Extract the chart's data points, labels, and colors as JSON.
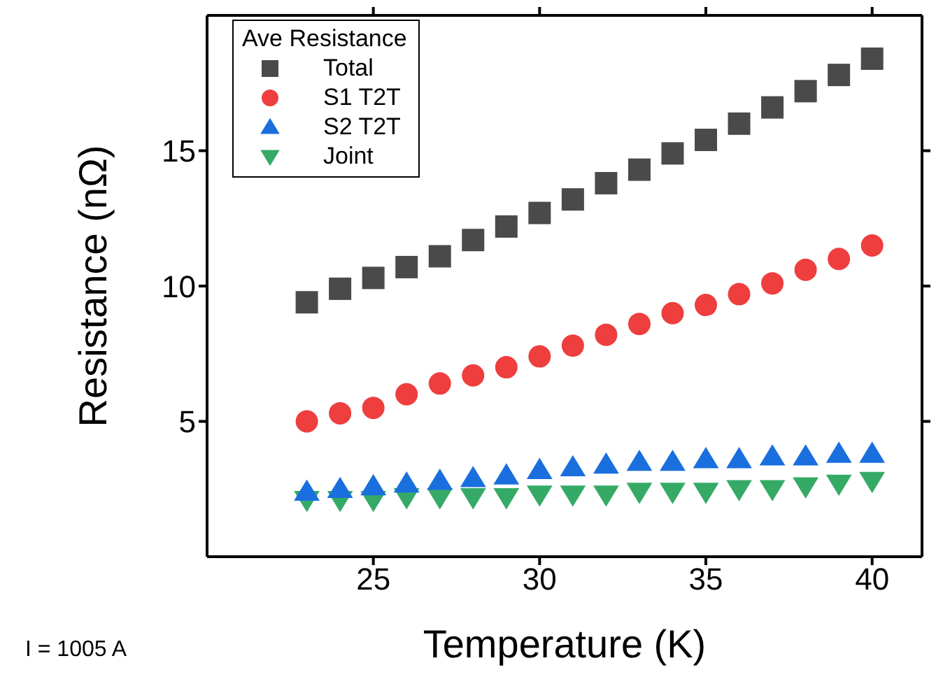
{
  "chart_data": {
    "type": "scatter",
    "xlabel": "Temperature (K)",
    "ylabel": "Resistance (nΩ)",
    "legend_title": "Ave Resistance",
    "legend": "top left",
    "x": [
      23,
      24,
      25,
      26,
      27,
      28,
      29,
      30,
      31,
      32,
      33,
      34,
      35,
      36,
      37,
      38,
      39,
      40
    ],
    "xlim": [
      20,
      41.5
    ],
    "xticks": [
      25,
      30,
      35,
      40
    ],
    "ylim": [
      0,
      20
    ],
    "yticks": [
      5,
      10,
      15
    ],
    "series": [
      {
        "name": "Total",
        "color": "#4a4a4a",
        "marker": "square",
        "values": [
          9.4,
          9.9,
          10.3,
          10.7,
          11.1,
          11.7,
          12.2,
          12.7,
          13.2,
          13.8,
          14.3,
          14.9,
          15.4,
          16.0,
          16.6,
          17.2,
          17.8,
          18.4
        ]
      },
      {
        "name": "S1 T2T",
        "color": "#ee3e3e",
        "marker": "circle",
        "values": [
          5.0,
          5.3,
          5.5,
          6.0,
          6.4,
          6.7,
          7.0,
          7.4,
          7.8,
          8.2,
          8.6,
          9.0,
          9.3,
          9.7,
          10.1,
          10.6,
          11.0,
          11.5
        ]
      },
      {
        "name": "S2 T2T",
        "color": "#1a6fde",
        "marker": "triangle",
        "values": [
          2.4,
          2.5,
          2.6,
          2.7,
          2.8,
          2.9,
          3.0,
          3.2,
          3.3,
          3.4,
          3.5,
          3.5,
          3.6,
          3.6,
          3.7,
          3.7,
          3.8,
          3.8
        ]
      },
      {
        "name": "Joint",
        "color": "#35aa66",
        "marker": "triangle-down",
        "values": [
          2.1,
          2.1,
          2.1,
          2.2,
          2.2,
          2.2,
          2.2,
          2.3,
          2.3,
          2.3,
          2.4,
          2.4,
          2.4,
          2.5,
          2.5,
          2.6,
          2.7,
          2.8
        ]
      }
    ],
    "annotations": [
      "I = 1005 A"
    ]
  }
}
